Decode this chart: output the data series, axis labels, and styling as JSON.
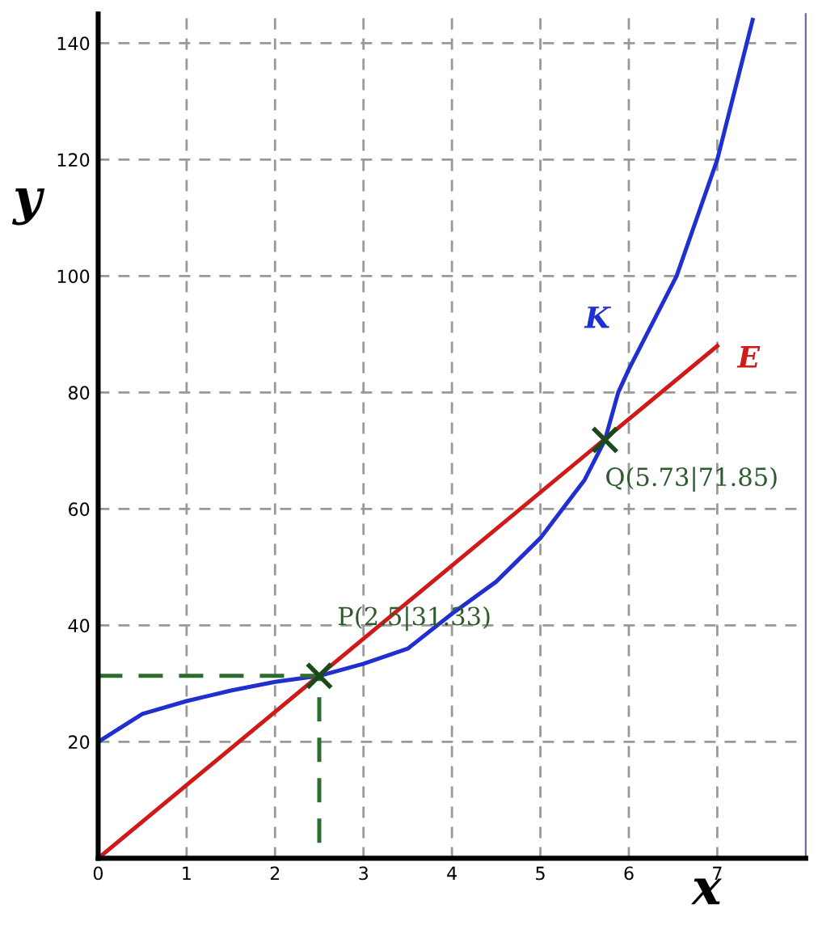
{
  "chart_data": {
    "type": "line",
    "xlabel": "x",
    "ylabel": "y",
    "xlim": [
      0,
      8
    ],
    "ylim": [
      0,
      145
    ],
    "xticks": [
      0,
      1,
      2,
      3,
      4,
      5,
      6,
      7
    ],
    "yticks": [
      20,
      40,
      60,
      80,
      100,
      120,
      140
    ],
    "grid": true,
    "series": [
      {
        "name": "K",
        "color": "#1f2fd0",
        "x": [
          0,
          0.5,
          1,
          1.5,
          2,
          2.5,
          3,
          3.5,
          4,
          4.5,
          5,
          5.5,
          5.73,
          5.88,
          6,
          6.54,
          7,
          7.4
        ],
        "values": [
          20,
          24.8,
          27,
          28.8,
          30.3,
          31.33,
          33.4,
          36,
          42,
          47.5,
          55,
          65,
          71.85,
          80,
          84,
          100,
          120,
          144
        ]
      },
      {
        "name": "E",
        "color": "#d01a1a",
        "x": [
          0,
          7
        ],
        "values": [
          0,
          88
        ]
      },
      {
        "type": "line",
        "color": "#2e6b2e",
        "line_style": "dashed",
        "x": [
          0,
          2.5,
          2.5
        ],
        "values": [
          31.33,
          31.33,
          0
        ]
      },
      {
        "type": "scatter",
        "color": "#1a4a1a",
        "marker": "cross",
        "x": [
          2.5,
          5.73
        ],
        "values": [
          31.33,
          71.85
        ]
      }
    ],
    "annotations": [
      {
        "text": "P(2.5|31.33)",
        "x": 2.5,
        "y": 31.33
      },
      {
        "text": "Q(5.73|71.85)",
        "x": 5.73,
        "y": 71.85
      }
    ]
  }
}
